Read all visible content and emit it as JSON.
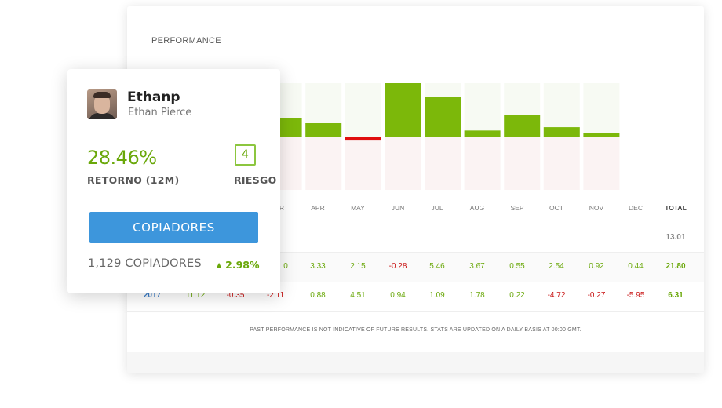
{
  "performance": {
    "title": "PERFORMANCE",
    "months": [
      "APR",
      "MAY",
      "JUN",
      "JUL",
      "AUG",
      "SEP",
      "OCT",
      "NOV",
      "DEC"
    ],
    "month_r_fragment": "R",
    "total_label": "TOTAL",
    "row_a": {
      "total": "13.01"
    },
    "row_b": {
      "partial_first": "0",
      "values": [
        "3.33",
        "2.15",
        "-0.28",
        "5.46",
        "3.67",
        "0.55",
        "2.54",
        "0.92",
        "0.44"
      ],
      "total": "21.80"
    },
    "row_c": {
      "year": "2017",
      "values": [
        "11.12",
        "-0.35",
        "-2.11",
        "0.88",
        "4.51",
        "0.94",
        "1.09",
        "1.78",
        "0.22",
        "-4.72",
        "-0.27",
        "-5.95"
      ],
      "total": "6.31"
    },
    "disclaimer": "PAST PERFORMANCE IS NOT INDICATIVE OF FUTURE RESULTS. STATS ARE UPDATED ON A DAILY BASIS AT 00:00 GMT."
  },
  "chart_data": {
    "type": "bar",
    "categories": [
      "MAR",
      "APR",
      "MAY",
      "JUN",
      "JUL",
      "AUG",
      "SEP",
      "OCT",
      "NOV",
      "DEC"
    ],
    "values": [
      1.4,
      1.4,
      1.0,
      -0.3,
      4.0,
      3.0,
      0.45,
      1.6,
      0.7,
      0.25
    ],
    "ylim": [
      -4.0,
      4.0
    ],
    "colors": {
      "positive": "#7cb80a",
      "negative": "#e00e0e",
      "bg_positive": "#f7faf3",
      "bg_negative": "#fbf3f3"
    }
  },
  "trader": {
    "username": "Ethanp",
    "full_name": "Ethan Pierce",
    "return_value": "28.46%",
    "return_label": "RETORNO (12M)",
    "risk_value": "4",
    "risk_label": "RIESGO",
    "copy_button_label": "COPIADORES",
    "copiers_count": "1,129 COPIADORES",
    "copiers_change": "2.98%",
    "change_icon": "triangle-up-icon"
  }
}
